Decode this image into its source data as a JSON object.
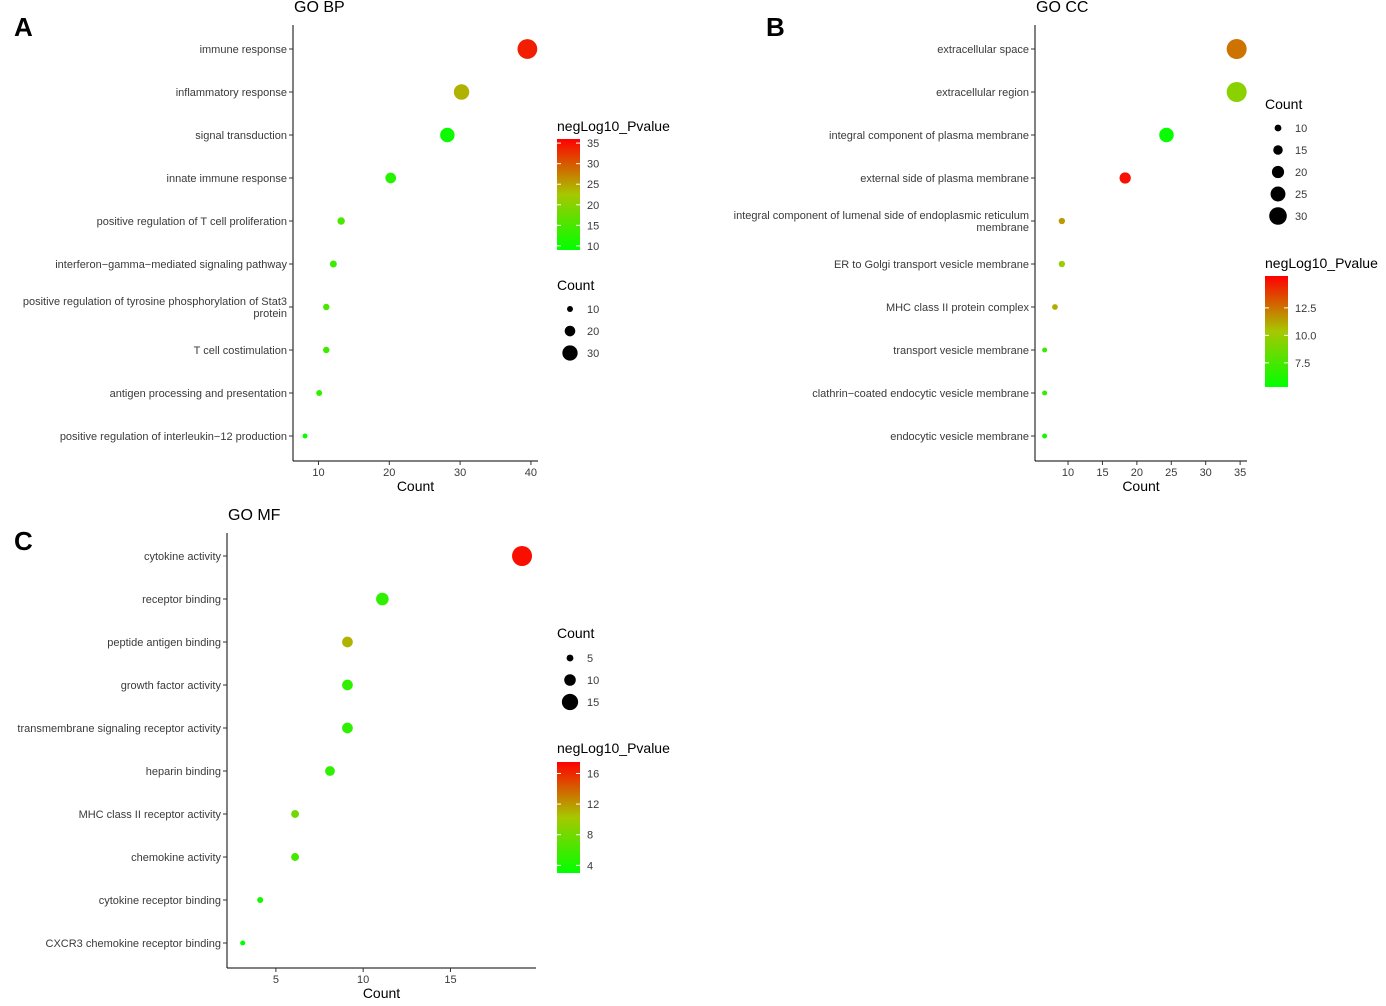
{
  "chart_data": [
    {
      "panel": "A",
      "type": "scatter",
      "title": "GO BP",
      "xlabel": "Count",
      "xlim": [
        6.4,
        41
      ],
      "xticks": [
        10,
        20,
        30,
        40
      ],
      "categories": [
        "immune response",
        "inflammatory response",
        "signal transduction",
        "innate immune response",
        "positive regulation of T cell proliferation",
        "interferon−gamma−mediated signaling pathway",
        "positive regulation of tyrosine phosphorylation of Stat3 protein",
        "T cell costimulation",
        "antigen processing and presentation",
        "positive regulation of interleukin−12 production"
      ],
      "category_lines": [
        [
          "immune response"
        ],
        [
          "inflammatory response"
        ],
        [
          "signal transduction"
        ],
        [
          "innate immune response"
        ],
        [
          "positive regulation of T cell proliferation"
        ],
        [
          "interferon−gamma−mediated signaling pathway"
        ],
        [
          "positive regulation of tyrosine phosphorylation of Stat3",
          "protein"
        ],
        [
          "T cell costimulation"
        ],
        [
          "antigen processing and presentation"
        ],
        [
          "positive regulation of interleukin−12 production"
        ]
      ],
      "count": [
        39.5,
        30.2,
        28.2,
        20.2,
        13.2,
        12.1,
        11.1,
        11.1,
        10.1,
        8.1
      ],
      "negLog10_Pvalue": [
        34,
        24,
        10,
        12,
        15,
        14,
        15,
        14,
        13,
        10
      ],
      "color_legend": {
        "title": "negLog10_Pvalue",
        "min": 9,
        "max": 36,
        "ticks": [
          35,
          30,
          25,
          20,
          15,
          10
        ]
      },
      "size_legend": {
        "title": "Count",
        "values": [
          10,
          20,
          30
        ]
      },
      "size_range": [
        8,
        40
      ]
    },
    {
      "panel": "B",
      "type": "scatter",
      "title": "GO CC",
      "xlabel": "Count",
      "xlim": [
        5.2,
        36
      ],
      "xticks": [
        10,
        15,
        20,
        25,
        30,
        35
      ],
      "categories": [
        "extracellular space",
        "extracellular region",
        "integral component of plasma membrane",
        "external side of plasma membrane",
        "integral component of lumenal side of endoplasmic reticulum membrane",
        "ER to Golgi transport vesicle membrane",
        "MHC class II protein complex",
        "transport vesicle membrane",
        "clathrin−coated endocytic vesicle membrane",
        "endocytic vesicle membrane"
      ],
      "category_lines": [
        [
          "extracellular space"
        ],
        [
          "extracellular region"
        ],
        [
          "integral component of plasma membrane"
        ],
        [
          "external side of plasma membrane"
        ],
        [
          "integral component of lumenal side of endoplasmic reticulum",
          "membrane"
        ],
        [
          "ER to Golgi transport vesicle membrane"
        ],
        [
          "MHC class II protein complex"
        ],
        [
          "transport vesicle membrane"
        ],
        [
          "clathrin−coated endocytic vesicle membrane"
        ],
        [
          "endocytic vesicle membrane"
        ]
      ],
      "count": [
        34.5,
        34.5,
        24.3,
        18.3,
        9.1,
        9.1,
        8.1,
        6.6,
        6.6,
        6.6
      ],
      "negLog10_Pvalue": [
        12.5,
        9.5,
        5.5,
        15,
        11.5,
        10,
        11,
        7,
        7,
        6
      ],
      "color_legend": {
        "title": "negLog10_Pvalue",
        "min": 5.3,
        "max": 15.4,
        "ticks": [
          12.5,
          10.0,
          7.5
        ]
      },
      "size_legend": {
        "title": "Count",
        "values": [
          10,
          15,
          20,
          25,
          30
        ]
      },
      "size_range": [
        6.6,
        34.5
      ]
    },
    {
      "panel": "C",
      "type": "scatter",
      "title": "GO MF",
      "xlabel": "Count",
      "xlim": [
        2.2,
        19.9
      ],
      "xticks": [
        5,
        10,
        15
      ],
      "categories": [
        "cytokine activity",
        "receptor binding",
        "peptide antigen binding",
        "growth factor activity",
        "transmembrane signaling receptor activity",
        "heparin binding",
        "MHC class II receptor activity",
        "chemokine activity",
        "cytokine receptor binding",
        "CXCR3 chemokine receptor binding"
      ],
      "category_lines": [
        [
          "cytokine activity"
        ],
        [
          "receptor binding"
        ],
        [
          "peptide antigen binding"
        ],
        [
          "growth factor activity"
        ],
        [
          "transmembrane signaling receptor activity"
        ],
        [
          "heparin binding"
        ],
        [
          "MHC class II receptor activity"
        ],
        [
          "chemokine activity"
        ],
        [
          "cytokine receptor binding"
        ],
        [
          "CXCR3 chemokine receptor binding"
        ]
      ],
      "count": [
        19.1,
        11.1,
        9.1,
        9.1,
        9.1,
        8.1,
        6.1,
        6.1,
        4.1,
        3.1
      ],
      "negLog10_Pvalue": [
        17,
        5,
        11,
        5,
        5,
        5,
        8,
        6,
        4,
        3
      ],
      "color_legend": {
        "title": "negLog10_Pvalue",
        "min": 3,
        "max": 17.5,
        "ticks": [
          16,
          12,
          8,
          4
        ]
      },
      "size_legend": {
        "title": "Count",
        "values": [
          5,
          10,
          15
        ]
      },
      "size_range": [
        3,
        19
      ]
    }
  ],
  "colors": {
    "low": "#00ff00",
    "mid": "#a6c800",
    "high": "#ff0000",
    "axis": "#000000",
    "label": "#3a3a3a"
  }
}
